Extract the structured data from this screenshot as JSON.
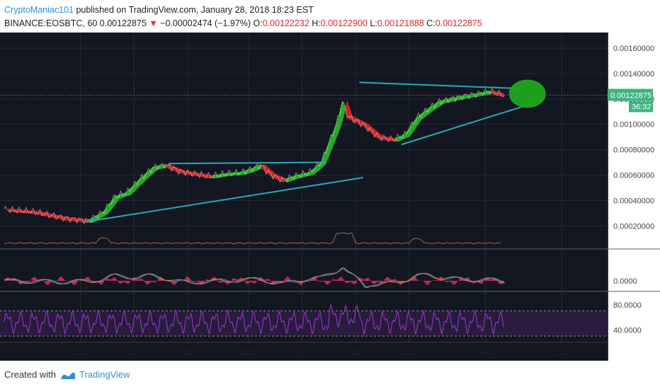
{
  "header": {
    "author": "CryptoManiac101",
    "published_text": " published on TradingView.com, January 28, 2018 18:23 EST",
    "symbol": "BINANCE:EOSBTC, 60",
    "last": "0.00122875",
    "change": "−0.00002474 (−1.97%)",
    "o_label": "O:",
    "o_value": "0.00122232",
    "h_label": "H:",
    "h_value": "0.00122900",
    "l_label": "L:",
    "l_value": "0.00121888",
    "c_label": "C:",
    "c_value": "0.00122875"
  },
  "footer": {
    "created_with": "Created with",
    "brand": "TradingView"
  },
  "colors": {
    "background": "#131722",
    "up": "#26c12a",
    "down": "#e0262b",
    "trendline": "#2aa9b5",
    "target": "#1fa51d",
    "macd": "#ff2e6e",
    "rsi": "#9b3fc8",
    "price_tag": "#3fb27f"
  },
  "chart_data": {
    "type": "line",
    "main": {
      "y_ticks": [
        "0.00160000",
        "0.00140000",
        "0.00120000",
        "0.00100000",
        "0.00080000",
        "0.00060000",
        "0.00040000",
        "0.00020000"
      ],
      "y_tick_values": [
        0.0016,
        0.0014,
        0.0012,
        0.001,
        0.0008,
        0.0006,
        0.0004,
        0.0002
      ],
      "ylim": [
        4e-05,
        0.0017
      ],
      "price_label": "0.00122875",
      "countdown_label": "36:32",
      "current_price": 0.00122875,
      "close_series": [
        [
          0,
          0.00033
        ],
        [
          4,
          0.00031
        ],
        [
          8,
          0.00026
        ],
        [
          11,
          0.00024
        ],
        [
          13,
          0.00031
        ],
        [
          14.5,
          0.00043
        ],
        [
          16,
          0.00046
        ],
        [
          18,
          0.00058
        ],
        [
          19.5,
          0.00066
        ],
        [
          21,
          0.00068
        ],
        [
          23,
          0.00063
        ],
        [
          25,
          0.00061
        ],
        [
          27,
          0.00059
        ],
        [
          29,
          0.00061
        ],
        [
          31,
          0.00062
        ],
        [
          32.5,
          0.00065
        ],
        [
          33.5,
          0.00068
        ],
        [
          35,
          0.0006
        ],
        [
          36.5,
          0.00056
        ],
        [
          38,
          0.00059
        ],
        [
          40,
          0.00062
        ],
        [
          41.5,
          0.0007
        ],
        [
          42.5,
          0.00085
        ],
        [
          43.5,
          0.001
        ],
        [
          44.3,
          0.00118
        ],
        [
          45,
          0.00106
        ],
        [
          47,
          0.001
        ],
        [
          49,
          0.0009
        ],
        [
          51,
          0.00088
        ],
        [
          52.5,
          0.00092
        ],
        [
          54,
          0.00105
        ],
        [
          55.5,
          0.00112
        ],
        [
          57,
          0.00118
        ],
        [
          58.5,
          0.0012
        ],
        [
          60,
          0.00122
        ],
        [
          62,
          0.00124
        ],
        [
          63.5,
          0.00126
        ],
        [
          65.5,
          0.00122875
        ]
      ],
      "resistance_line_1": [
        [
          21.5,
          0.00069
        ],
        [
          42,
          0.0007
        ]
      ],
      "support_line_1": [
        [
          10.5,
          0.00023
        ],
        [
          47,
          0.00058
        ]
      ],
      "resistance_line_2": [
        [
          46.5,
          0.00133
        ],
        [
          68,
          0.00128
        ]
      ],
      "support_line_2": [
        [
          52,
          0.00084
        ],
        [
          69.5,
          0.00117
        ]
      ],
      "target_zone": {
        "x": 68.5,
        "y": 0.00124
      }
    },
    "macd": {
      "y_ticks": [
        "0.0000"
      ],
      "y_tick_values": [
        0
      ]
    },
    "rsi": {
      "y_ticks": [
        "80.0000",
        "40.0000"
      ],
      "y_tick_values": [
        80,
        40
      ],
      "ylim": [
        20,
        100
      ],
      "bands": [
        70,
        30
      ]
    },
    "x_ticks": [
      {
        "label": "11",
        "x": 10
      },
      {
        "label": "18",
        "x": 17
      },
      {
        "label": "25",
        "x": 24
      },
      {
        "label": "2018",
        "x": 32
      },
      {
        "label": "8",
        "x": 39
      },
      {
        "label": "15",
        "x": 46
      },
      {
        "label": "22",
        "x": 53
      },
      {
        "label": "Feb",
        "x": 63
      },
      {
        "label": "12",
        "x": 73
      }
    ],
    "xlim": [
      0,
      79
    ]
  }
}
